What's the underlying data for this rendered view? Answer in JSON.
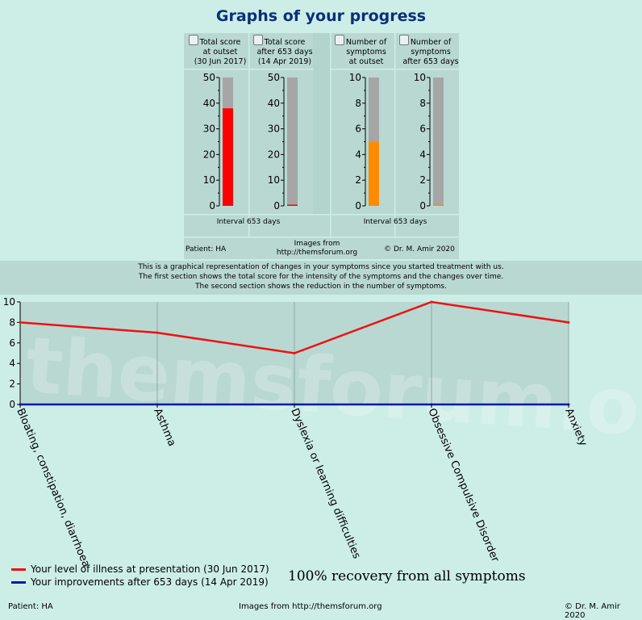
{
  "page_title": "Graphs of your progress",
  "gauges": [
    {
      "line1": "Total score",
      "line2": "at outset",
      "line3": "(30 Jun 2017)",
      "max": 50,
      "ticks": [
        "50",
        "40",
        "30",
        "20",
        "10",
        "0"
      ],
      "value": 38,
      "color": "#ff0000"
    },
    {
      "line1": "Total score",
      "line2": "after 653 days",
      "line3": "(14 Apr 2019)",
      "max": 50,
      "ticks": [
        "50",
        "40",
        "30",
        "20",
        "10",
        "0"
      ],
      "value": 0,
      "color": "#ff0000"
    },
    {
      "line1": "Number of",
      "line2": "symptoms",
      "line3": "at outset",
      "max": 10,
      "ticks": [
        "10",
        "8",
        "6",
        "4",
        "2",
        "0"
      ],
      "value": 5,
      "color": "#ff8c00"
    },
    {
      "line1": "Number of",
      "line2": "symptoms",
      "line3": "after 653 days",
      "max": 10,
      "ticks": [
        "10",
        "8",
        "6",
        "4",
        "2",
        "0"
      ],
      "value": 0,
      "color": "#ff8c00"
    }
  ],
  "interval_left": "Interval 653 days",
  "interval_right": "Interval 653 days",
  "gauge_footer": {
    "patient": "Patient: HA",
    "images": "Images from http://themsforum.org",
    "copyright": "© Dr. M. Amir 2020"
  },
  "info_lines": [
    "This is a graphical representation of changes in your symptoms since you started treatment with us.",
    "The first section shows the total score for the intensity of the symptoms and the changes over time.",
    "The second section shows the reduction in the number of symptoms."
  ],
  "watermark_text": "themsforum.org",
  "chart_data": {
    "type": "line",
    "categories": [
      "Bloating, constipation, diarrhoea",
      "Asthma",
      "Dyslexia or learning difficulties",
      "Obsessive Compulsive Disorder",
      "Anxiety"
    ],
    "ylim": [
      0,
      10
    ],
    "yticks": [
      "0",
      "2",
      "4",
      "6",
      "8",
      "10"
    ],
    "grid": true,
    "legend_position": "bottom-left",
    "series": [
      {
        "name": "Your level of illness at presentation (30 Jun 2017)",
        "values": [
          8,
          7,
          5,
          10,
          8
        ],
        "color": "#ee1111"
      },
      {
        "name": "Your improvements after 653 days (14 Apr 2019)",
        "values": [
          0,
          0,
          0,
          0,
          0
        ],
        "color": "#0a1aa0"
      }
    ]
  },
  "recovery_text": "100% recovery from all symptoms",
  "footer": {
    "patient": "Patient: HA",
    "images": "Images from http://themsforum.org",
    "copyright": "© Dr. M. Amir 2020"
  }
}
